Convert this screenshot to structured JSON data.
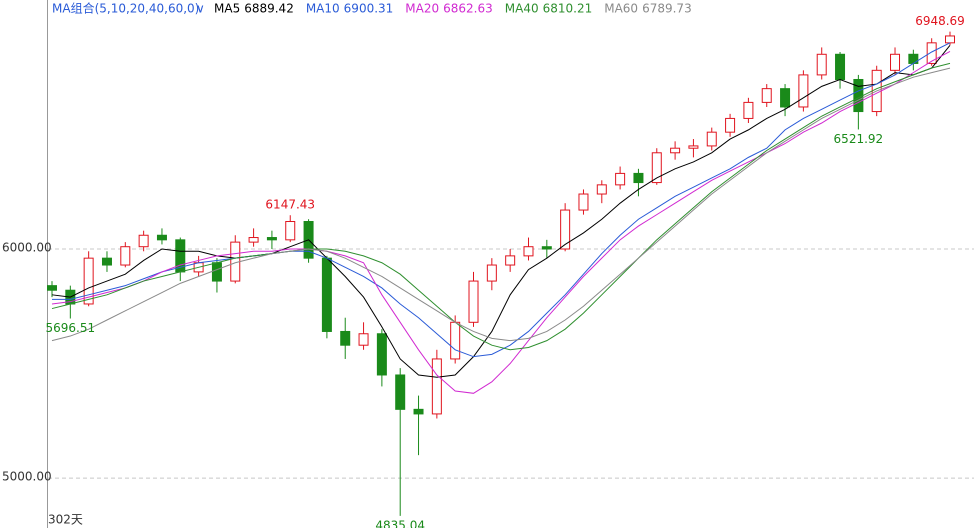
{
  "chart_data": {
    "type": "candlestick",
    "indicator": "MA组合(5,10,20,40,60,0)",
    "period_label": "302天",
    "ylim": [
      4782,
      7087
    ],
    "yticks": [
      {
        "value": 5000,
        "label": "5000.00"
      },
      {
        "value": 6000,
        "label": "6000.00"
      }
    ],
    "grid": true,
    "up_color": "#e0141e",
    "down_color": "#1a8a1a",
    "candles": [
      [
        5840,
        5860,
        5790,
        5820
      ],
      [
        5820,
        5840,
        5696.51,
        5760
      ],
      [
        5760,
        5990,
        5750,
        5960
      ],
      [
        5960,
        5990,
        5900,
        5930
      ],
      [
        5930,
        6030,
        5920,
        6010
      ],
      [
        6010,
        6080,
        5990,
        6060
      ],
      [
        6060,
        6090,
        6020,
        6040
      ],
      [
        6040,
        6050,
        5860,
        5900
      ],
      [
        5900,
        5970,
        5880,
        5940
      ],
      [
        5940,
        5960,
        5810,
        5860
      ],
      [
        5860,
        6060,
        5850,
        6030
      ],
      [
        6030,
        6090,
        6010,
        6050
      ],
      [
        6050,
        6080,
        6000,
        6040
      ],
      [
        6040,
        6147.43,
        6030,
        6120
      ],
      [
        6120,
        6130,
        5940,
        5960
      ],
      [
        5960,
        5970,
        5610,
        5640
      ],
      [
        5640,
        5700,
        5520,
        5580
      ],
      [
        5580,
        5680,
        5560,
        5630
      ],
      [
        5630,
        5650,
        5400,
        5450
      ],
      [
        5450,
        5480,
        4835.04,
        5300
      ],
      [
        5300,
        5360,
        5100,
        5280
      ],
      [
        5280,
        5560,
        5260,
        5520
      ],
      [
        5520,
        5710,
        5500,
        5680
      ],
      [
        5680,
        5900,
        5660,
        5860
      ],
      [
        5860,
        5960,
        5820,
        5930
      ],
      [
        5930,
        6000,
        5900,
        5970
      ],
      [
        5970,
        6050,
        5950,
        6010
      ],
      [
        6010,
        6040,
        5960,
        6000
      ],
      [
        6000,
        6200,
        5990,
        6170
      ],
      [
        6170,
        6260,
        6150,
        6240
      ],
      [
        6240,
        6300,
        6200,
        6280
      ],
      [
        6280,
        6360,
        6260,
        6330
      ],
      [
        6330,
        6350,
        6230,
        6290
      ],
      [
        6290,
        6440,
        6280,
        6420
      ],
      [
        6420,
        6470,
        6390,
        6440
      ],
      [
        6440,
        6480,
        6400,
        6450
      ],
      [
        6450,
        6530,
        6430,
        6510
      ],
      [
        6510,
        6590,
        6490,
        6570
      ],
      [
        6570,
        6660,
        6550,
        6640
      ],
      [
        6640,
        6720,
        6620,
        6700
      ],
      [
        6700,
        6720,
        6580,
        6620
      ],
      [
        6620,
        6780,
        6600,
        6760
      ],
      [
        6760,
        6880,
        6740,
        6850
      ],
      [
        6850,
        6860,
        6700,
        6740
      ],
      [
        6740,
        6760,
        6521.92,
        6600
      ],
      [
        6600,
        6800,
        6580,
        6780
      ],
      [
        6780,
        6880,
        6760,
        6850
      ],
      [
        6850,
        6870,
        6780,
        6810
      ],
      [
        6810,
        6920,
        6800,
        6900
      ],
      [
        6900,
        6948.69,
        6890,
        6930
      ]
    ],
    "series": [
      {
        "name": "MA5",
        "color": "#000000",
        "values": [
          5800,
          5790,
          5830,
          5860,
          5890,
          5950,
          6000,
          5990,
          5990,
          5970,
          5960,
          5970,
          5980,
          6010,
          6040,
          5960,
          5880,
          5790,
          5660,
          5520,
          5450,
          5440,
          5450,
          5530,
          5640,
          5800,
          5910,
          5960,
          6020,
          6070,
          6130,
          6200,
          6260,
          6310,
          6350,
          6380,
          6420,
          6480,
          6520,
          6570,
          6610,
          6660,
          6710,
          6740,
          6710,
          6720,
          6770,
          6760,
          6790,
          6889.42
        ]
      },
      {
        "name": "MA10",
        "color": "#2a5bd7",
        "values": [
          5780,
          5780,
          5800,
          5820,
          5840,
          5870,
          5900,
          5920,
          5940,
          5950,
          5960,
          5970,
          5980,
          5990,
          5990,
          5960,
          5920,
          5880,
          5830,
          5760,
          5700,
          5630,
          5560,
          5530,
          5540,
          5580,
          5640,
          5720,
          5800,
          5890,
          5980,
          6060,
          6130,
          6180,
          6230,
          6270,
          6310,
          6350,
          6400,
          6440,
          6520,
          6570,
          6610,
          6650,
          6690,
          6720,
          6760,
          6810,
          6860,
          6900.31
        ]
      },
      {
        "name": "MA20",
        "color": "#d12ad1",
        "values": [
          5760,
          5770,
          5790,
          5810,
          5830,
          5860,
          5900,
          5930,
          5950,
          5970,
          5980,
          5990,
          5990,
          6000,
          6000,
          5990,
          5970,
          5940,
          5800,
          5680,
          5560,
          5450,
          5380,
          5370,
          5420,
          5500,
          5600,
          5700,
          5790,
          5880,
          5960,
          6040,
          6100,
          6150,
          6200,
          6250,
          6300,
          6340,
          6380,
          6420,
          6460,
          6510,
          6550,
          6600,
          6640,
          6680,
          6720,
          6770,
          6820,
          6862.63
        ]
      },
      {
        "name": "MA40",
        "color": "#2f8f2f",
        "values": [
          5740,
          5760,
          5780,
          5800,
          5830,
          5860,
          5880,
          5900,
          5920,
          5940,
          5960,
          5970,
          5980,
          5990,
          6000,
          6000,
          5990,
          5970,
          5940,
          5890,
          5820,
          5750,
          5680,
          5620,
          5580,
          5560,
          5570,
          5600,
          5650,
          5720,
          5800,
          5880,
          5960,
          6040,
          6110,
          6180,
          6250,
          6310,
          6370,
          6430,
          6480,
          6530,
          6580,
          6620,
          6660,
          6700,
          6730,
          6760,
          6790,
          6810.21
        ]
      },
      {
        "name": "MA60",
        "color": "#8a8a8a",
        "values": [
          5600,
          5620,
          5650,
          5690,
          5730,
          5770,
          5810,
          5850,
          5880,
          5910,
          5940,
          5960,
          5980,
          5990,
          6000,
          5990,
          5960,
          5920,
          5880,
          5830,
          5780,
          5730,
          5680,
          5640,
          5610,
          5600,
          5610,
          5640,
          5690,
          5750,
          5820,
          5890,
          5960,
          6030,
          6100,
          6170,
          6240,
          6300,
          6360,
          6420,
          6470,
          6520,
          6570,
          6610,
          6650,
          6690,
          6720,
          6750,
          6770,
          6789.73
        ]
      }
    ]
  }
}
